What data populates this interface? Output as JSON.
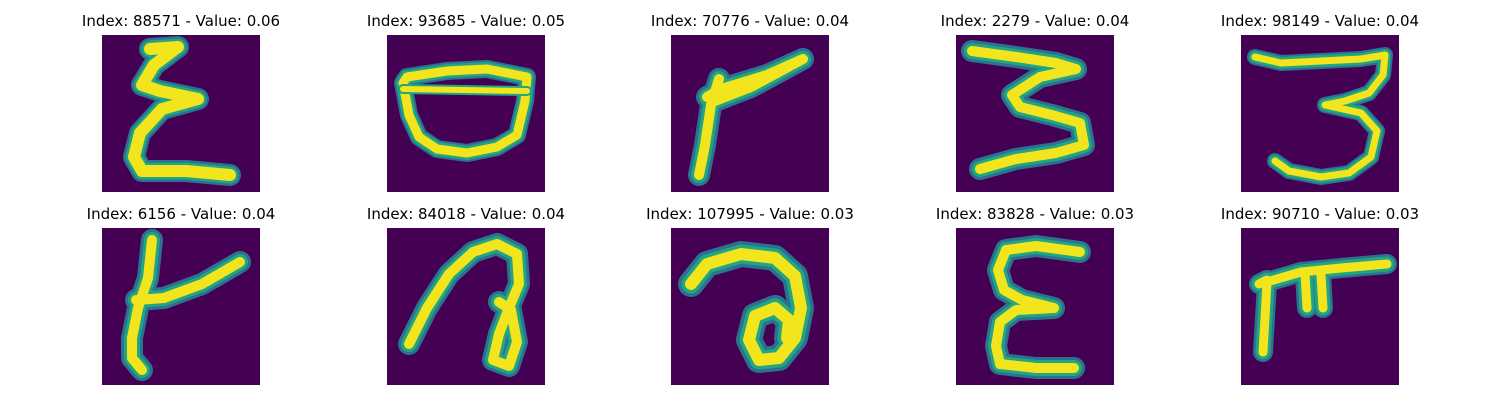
{
  "colors": {
    "background": "#440154",
    "stroke_outer": "#2c728e",
    "stroke_mid": "#21a585",
    "stroke_core": "#f2e51d"
  },
  "panels": [
    {
      "title": "Index: 88571 - Value: 0.06",
      "glyph": "sigma"
    },
    {
      "title": "Index: 93685 - Value: 0.05",
      "glyph": "bowl"
    },
    {
      "title": "Index: 70776 - Value: 0.04",
      "glyph": "flag"
    },
    {
      "title": "Index: 2279 - Value: 0.04",
      "glyph": "zigzag-3"
    },
    {
      "title": "Index: 98149 - Value: 0.04",
      "glyph": "curly-3"
    },
    {
      "title": "Index: 6156 - Value: 0.04",
      "glyph": "y-shape"
    },
    {
      "title": "Index: 84018 - Value: 0.04",
      "glyph": "loop-a"
    },
    {
      "title": "Index: 107995 - Value: 0.03",
      "glyph": "loop-b"
    },
    {
      "title": "Index: 83828 - Value: 0.03",
      "glyph": "epsilon"
    },
    {
      "title": "Index: 90710 - Value: 0.03",
      "glyph": "gate"
    }
  ]
}
